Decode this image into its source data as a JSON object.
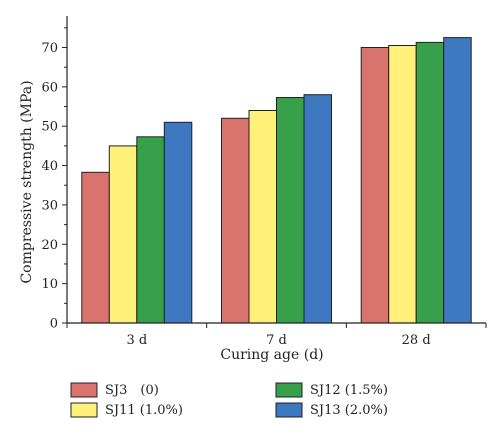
{
  "chart_data": {
    "type": "bar",
    "categories": [
      "3 d",
      "7 d",
      "28 d"
    ],
    "series": [
      {
        "name": "SJ3  (0)",
        "color": "#D9736D",
        "values": [
          38.3,
          52.0,
          70.0
        ]
      },
      {
        "name": "SJ11 (1.0%)",
        "color": "#FFF07A",
        "values": [
          45.0,
          54.0,
          70.5
        ]
      },
      {
        "name": "SJ12 (1.5%)",
        "color": "#37A04A",
        "values": [
          47.3,
          57.3,
          71.3
        ]
      },
      {
        "name": "SJ13 (2.0%)",
        "color": "#3E78C0",
        "values": [
          51.0,
          58.0,
          72.5
        ]
      }
    ],
    "xlabel": "Curing age (d)",
    "ylabel": "Compressive strength (MPa)",
    "ylim": [
      0,
      78
    ],
    "yticks": [
      0,
      10,
      20,
      30,
      40,
      50,
      60,
      70
    ],
    "grid": false,
    "legend_position": "bottom"
  }
}
